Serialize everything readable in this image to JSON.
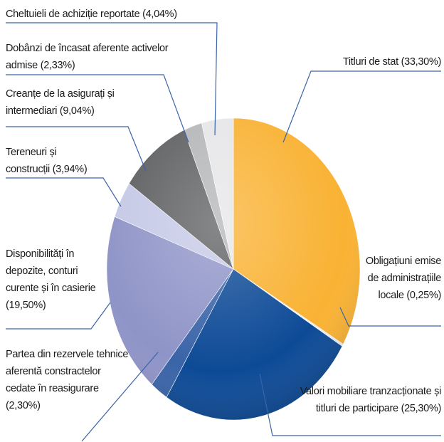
{
  "chart_data": {
    "type": "pie",
    "categories": [
      "Titluri de stat",
      "Obligațiuni emise de administrațiile locale",
      "Valori mobiliare tranzacționate și titluri de participare",
      "Partea din rezervele tehnice aferentă constractelor cedate în reasigurare",
      "Disponibilități în depozite, conturi curente și în casierie",
      "Tereneuri și construcții",
      "Creanțe de la asigurați și intermediari",
      "Dobânzi de încasat aferente activelor admise",
      "Cheltuieli de achiziție reportate"
    ],
    "values": [
      33.3,
      0.25,
      25.3,
      2.3,
      19.5,
      3.94,
      9.04,
      2.33,
      4.04
    ],
    "value_labels": [
      "(33,30%)",
      "(0,25%)",
      "(25,30%)",
      "(2,30%)",
      "(19,50%)",
      "(3,94%)",
      "(9,04%)",
      "(2,33%)",
      "(4,04%)"
    ],
    "colors": [
      "#f9b233",
      "#e8eef6",
      "#0d4a96",
      "#3a64a8",
      "#8f94c8",
      "#c5c9e6",
      "#5f6062",
      "#b5b6b8",
      "#e6e6e8"
    ]
  }
}
